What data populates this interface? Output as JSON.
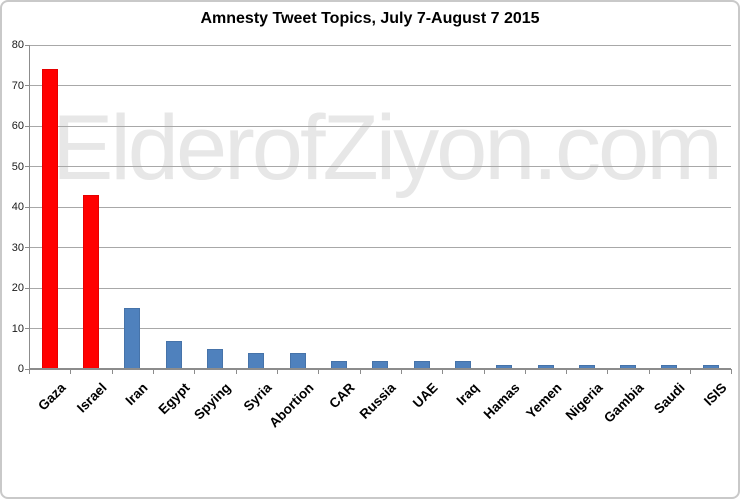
{
  "chart_data": {
    "type": "bar",
    "title": "Amnesty Tweet Topics, July 7-August 7 2015",
    "watermark": "ElderofZiyon.com",
    "categories": [
      "Gaza",
      "Israel",
      "Iran",
      "Egypt",
      "Spying",
      "Syria",
      "Abortion",
      "CAR",
      "Russia",
      "UAE",
      "Iraq",
      "Hamas",
      "Yemen",
      "Nigeria",
      "Gambia",
      "Saudi",
      "ISIS"
    ],
    "values": [
      74,
      43,
      15,
      7,
      5,
      4,
      4,
      2,
      2,
      2,
      2,
      1,
      1,
      1,
      1,
      1,
      1
    ],
    "bar_colors": [
      "#FF0000",
      "#FF0000",
      "#4F81BD",
      "#4F81BD",
      "#4F81BD",
      "#4F81BD",
      "#4F81BD",
      "#4F81BD",
      "#4F81BD",
      "#4F81BD",
      "#4F81BD",
      "#4F81BD",
      "#4F81BD",
      "#4F81BD",
      "#4F81BD",
      "#4F81BD",
      "#4F81BD"
    ],
    "yticks": [
      0,
      10,
      20,
      30,
      40,
      50,
      60,
      70,
      80
    ],
    "ylim": [
      0,
      80
    ],
    "xlabel": "",
    "ylabel": "",
    "grid": true,
    "legend_position": "none",
    "colors": {
      "highlight_bar": "#FF0000",
      "default_bar": "#4F81BD",
      "gridline": "#A8A8A8",
      "axis": "#8C8C8C",
      "watermark_text": "#E7E7E7",
      "frame_border": "#C9C9C9",
      "title_text": "#000000"
    }
  }
}
